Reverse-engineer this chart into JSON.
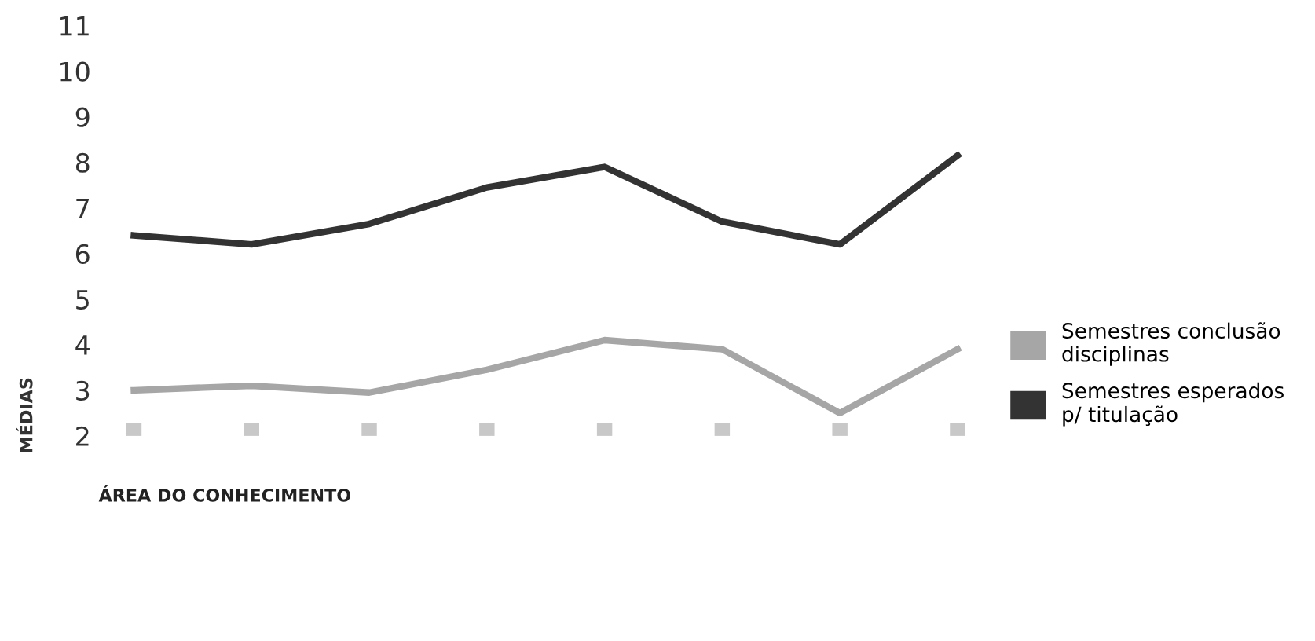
{
  "chart_data": {
    "type": "line",
    "xlabel": "ÁREA DO CONHECIMENTO",
    "ylabel": "MÉDIAS",
    "categories": [
      null,
      null,
      null,
      null,
      null,
      null,
      null,
      null
    ],
    "series": [
      {
        "name": "Semestres conclusão disciplinas",
        "color": "#a6a6a6",
        "values": [
          3.0,
          3.1,
          2.95,
          3.45,
          4.1,
          3.9,
          2.5,
          3.9
        ]
      },
      {
        "name": "Semestres esperados p/ titulação",
        "color": "#333333",
        "values": [
          6.4,
          6.2,
          6.65,
          7.45,
          7.9,
          6.7,
          6.2,
          8.15
        ]
      }
    ],
    "ylim": [
      2,
      11
    ],
    "yticks": [
      2,
      3,
      4,
      5,
      6,
      7,
      8,
      9,
      10,
      11
    ],
    "grid": false,
    "legend": "right",
    "marker": "none",
    "line_style": "solid"
  }
}
